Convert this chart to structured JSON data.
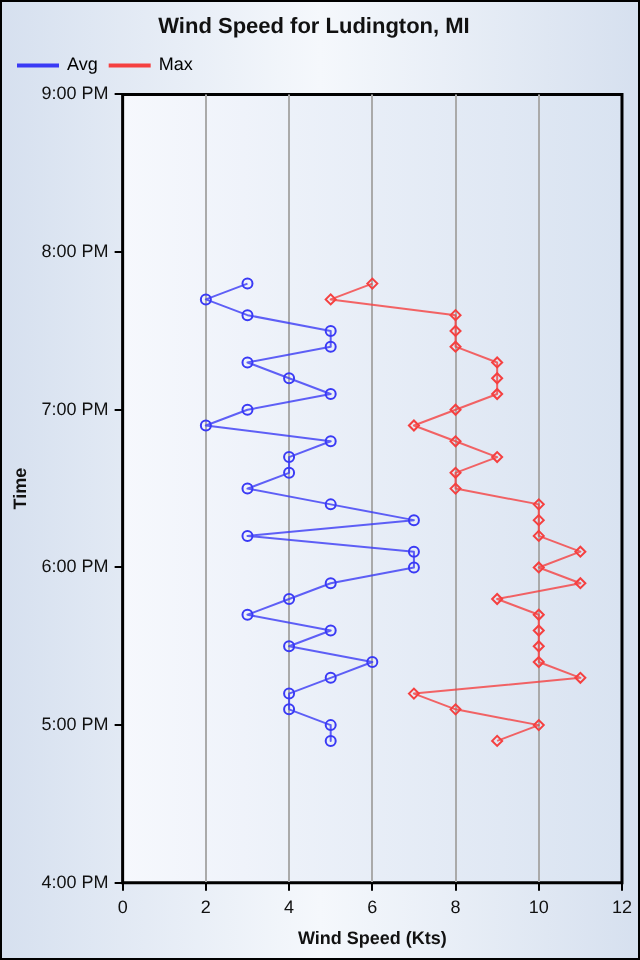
{
  "chart_data": {
    "type": "line",
    "title": "Wind Speed for Ludington, MI",
    "xlabel": "Wind Speed (Kts)",
    "ylabel": "Time",
    "xlim": [
      0,
      12
    ],
    "xticks": [
      0,
      2,
      4,
      6,
      8,
      10,
      12
    ],
    "ylim": [
      16,
      21
    ],
    "yticks": [
      {
        "value": 16,
        "label": "4:00 PM"
      },
      {
        "value": 17,
        "label": "5:00 PM"
      },
      {
        "value": 18,
        "label": "6:00 PM"
      },
      {
        "value": 19,
        "label": "7:00 PM"
      },
      {
        "value": 20,
        "label": "8:00 PM"
      },
      {
        "value": 21,
        "label": "9:00 PM"
      }
    ],
    "grid": "x",
    "legend": "top left",
    "line_style": "solid",
    "series": [
      {
        "name": "Avg",
        "color": "#3a3af5",
        "marker": "circle",
        "x": [
          3,
          2,
          3,
          5,
          5,
          3,
          4,
          5,
          3,
          2,
          5,
          4,
          4,
          3,
          5,
          7,
          3,
          7,
          7,
          5,
          4,
          3,
          5,
          4,
          6,
          5,
          4,
          4,
          5,
          5
        ],
        "values": [
          19.8,
          19.7,
          19.6,
          19.5,
          19.4,
          19.3,
          19.2,
          19.1,
          19.0,
          18.9,
          18.8,
          18.7,
          18.6,
          18.5,
          18.4,
          18.3,
          18.2,
          18.1,
          18.0,
          17.9,
          17.8,
          17.7,
          17.6,
          17.5,
          17.4,
          17.3,
          17.2,
          17.1,
          17.0,
          16.9
        ]
      },
      {
        "name": "Max",
        "color": "#f54040",
        "marker": "diamond",
        "x": [
          6,
          5,
          8,
          8,
          8,
          9,
          9,
          9,
          8,
          7,
          8,
          9,
          8,
          8,
          10,
          10,
          10,
          11,
          10,
          11,
          9,
          10,
          10,
          10,
          10,
          11,
          7,
          8,
          10,
          9
        ],
        "values": [
          19.8,
          19.7,
          19.6,
          19.5,
          19.4,
          19.3,
          19.2,
          19.1,
          19.0,
          18.9,
          18.8,
          18.7,
          18.6,
          18.5,
          18.4,
          18.3,
          18.2,
          18.1,
          18.0,
          17.9,
          17.8,
          17.7,
          17.6,
          17.5,
          17.4,
          17.3,
          17.2,
          17.1,
          17.0,
          16.9
        ]
      }
    ]
  }
}
